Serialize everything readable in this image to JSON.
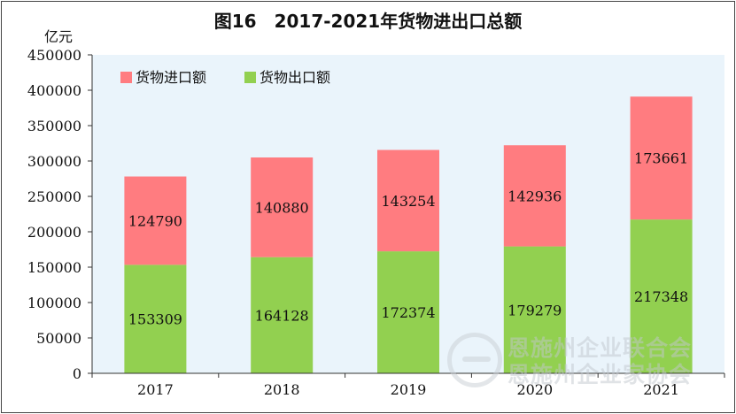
{
  "chart_data": {
    "type": "bar",
    "stacked": true,
    "title": "图16　2017-2021年货物进出口总额",
    "ylabel": "亿元",
    "categories": [
      "2017",
      "2018",
      "2019",
      "2020",
      "2021"
    ],
    "series": [
      {
        "name": "货物出口额",
        "values": [
          153309,
          164128,
          172374,
          179279,
          217348
        ],
        "color": "#92d050"
      },
      {
        "name": "货物进口额",
        "values": [
          124790,
          140880,
          143254,
          142936,
          173661
        ],
        "color": "#ff7c80"
      }
    ],
    "ylim": [
      0,
      450000
    ],
    "yticks": [
      "0",
      "50000",
      "100000",
      "150000",
      "200000",
      "250000",
      "300000",
      "350000",
      "400000",
      "450000"
    ],
    "grid": false,
    "legend_position": "top-left",
    "plot_background": "#eaf4fb"
  },
  "watermark": {
    "line1": "恩施州企业联合会",
    "line2": "恩施州企业家协会"
  }
}
